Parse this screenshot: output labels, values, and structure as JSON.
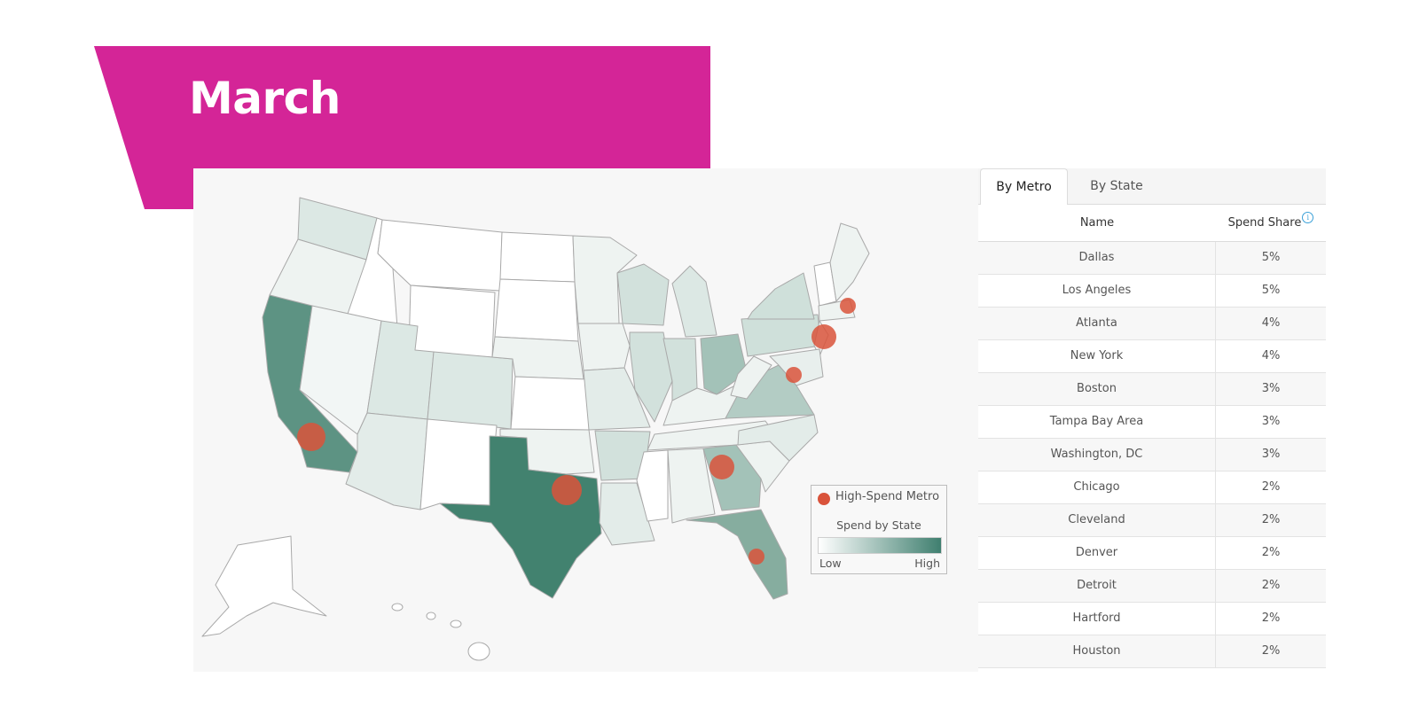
{
  "header": {
    "title": "March"
  },
  "colors": {
    "banner": "#d42597",
    "metro_dot": "#d9533b",
    "scale_low": "#ffffff",
    "scale_high": "#3f7f6f"
  },
  "map": {
    "legend": {
      "metro_label": "High-Spend Metro",
      "scale_title": "Spend by State",
      "low": "Low",
      "high": "High"
    },
    "state_spend_levels": {
      "TX": 1.0,
      "CA": 0.7,
      "GA": 0.4,
      "FL": 0.4,
      "OH": 0.4,
      "VA": 0.3,
      "NY": 0.3,
      "PA": 0.3
    },
    "metro_markers": [
      {
        "name": "Los Angeles",
        "state": "CA"
      },
      {
        "name": "Dallas",
        "state": "TX"
      },
      {
        "name": "Atlanta",
        "state": "GA"
      },
      {
        "name": "Tampa Bay Area",
        "state": "FL"
      },
      {
        "name": "New York",
        "state": "NY"
      },
      {
        "name": "Boston",
        "state": "MA"
      },
      {
        "name": "Washington, DC",
        "state": "DC"
      }
    ]
  },
  "tabs": [
    {
      "label": "By Metro",
      "active": true
    },
    {
      "label": "By State",
      "active": false
    }
  ],
  "table": {
    "columns": {
      "name": "Name",
      "share": "Spend Share"
    },
    "rows": [
      {
        "name": "Dallas",
        "share": "5%"
      },
      {
        "name": "Los Angeles",
        "share": "5%"
      },
      {
        "name": "Atlanta",
        "share": "4%"
      },
      {
        "name": "New York",
        "share": "4%"
      },
      {
        "name": "Boston",
        "share": "3%"
      },
      {
        "name": "Tampa Bay Area",
        "share": "3%"
      },
      {
        "name": "Washington, DC",
        "share": "3%"
      },
      {
        "name": "Chicago",
        "share": "2%"
      },
      {
        "name": "Cleveland",
        "share": "2%"
      },
      {
        "name": "Denver",
        "share": "2%"
      },
      {
        "name": "Detroit",
        "share": "2%"
      },
      {
        "name": "Hartford",
        "share": "2%"
      },
      {
        "name": "Houston",
        "share": "2%"
      }
    ]
  }
}
